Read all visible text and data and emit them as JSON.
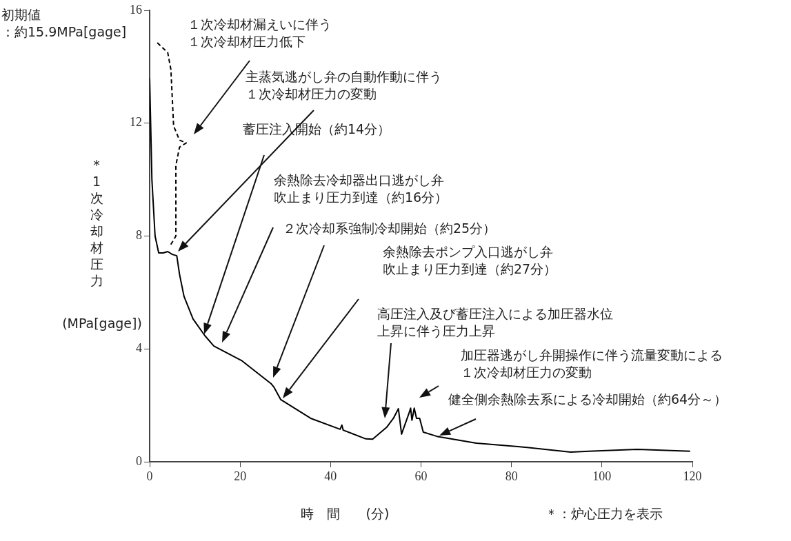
{
  "chart_data": {
    "type": "line",
    "xlabel": "時　間　　(分)",
    "ylabel": "*1次冷却材圧力\n(MPa[gage])",
    "xlim": [
      0,
      120
    ],
    "xticks": [
      0,
      20,
      40,
      60,
      80,
      100,
      120
    ],
    "ylim": [
      0,
      16
    ],
    "yticks": [
      0,
      4,
      8,
      12,
      16
    ],
    "grid": false,
    "legend": false,
    "marker": "none",
    "series": [
      {
        "color": "#000000",
        "line_style": "solid",
        "x": [
          0,
          0.5,
          1.2,
          2,
          3,
          4,
          5,
          6,
          6.6,
          7.6,
          9.6,
          12.2,
          14.2,
          20.3,
          26.9,
          27.5,
          29,
          35.6,
          42.1,
          42.5,
          42.8,
          47.8,
          49.3,
          52.4,
          53.9,
          55,
          55.7,
          57.3,
          57.7,
          58,
          58.5,
          59,
          59.7,
          60.5,
          63.5,
          72.2,
          81.4,
          93.1,
          97.1,
          107.8,
          119.5
        ],
        "values": [
          13.6,
          10,
          8,
          7.4,
          7.4,
          7.45,
          7.35,
          7.3,
          6.65,
          5.86,
          5.06,
          4.47,
          4.1,
          3.59,
          2.76,
          2.64,
          2.2,
          1.54,
          1.15,
          1.3,
          1.12,
          0.81,
          0.8,
          1.22,
          1.54,
          1.88,
          0.98,
          1.7,
          1.9,
          1.47,
          1.9,
          1.54,
          1.54,
          1.05,
          0.9,
          0.66,
          0.54,
          0.34,
          0.37,
          0.44,
          0.37
        ]
      },
      {
        "color": "#000000",
        "line_style": "dashed",
        "x": [
          1.7,
          4,
          4.7,
          5.3,
          6.6,
          8.1,
          6.6,
          5.8,
          5.8,
          4.5
        ],
        "values": [
          14.85,
          14.5,
          13.9,
          11.9,
          11.4,
          11.3,
          11.15,
          10.5,
          8,
          7.65
        ]
      }
    ],
    "annotations": [
      "初期値：約15.9MPa[gage]",
      "１次冷却材漏えいに伴う１次冷却材圧力低下",
      "主蒸気逃がし弁の自動作動に伴う１次冷却材圧力の変動",
      "蓄圧注入開始（約14分）",
      "余熱除去冷却器出口逃がし弁吹止まり圧力到達（約16分）",
      "２次冷却系強制冷却開始（約25分）",
      "余熱除去ポンプ入口逃がし弁吹止まり圧力到達（約27分）",
      "高圧注入及び蓄圧注入による加圧器水位上昇に伴う圧力上昇",
      "加圧器逃がし弁開操作に伴う流量変動による１次冷却材圧力の変動",
      "健全側余熱除去系による冷却開始（約64分～）",
      "＊：炉心圧力を表示"
    ]
  }
}
